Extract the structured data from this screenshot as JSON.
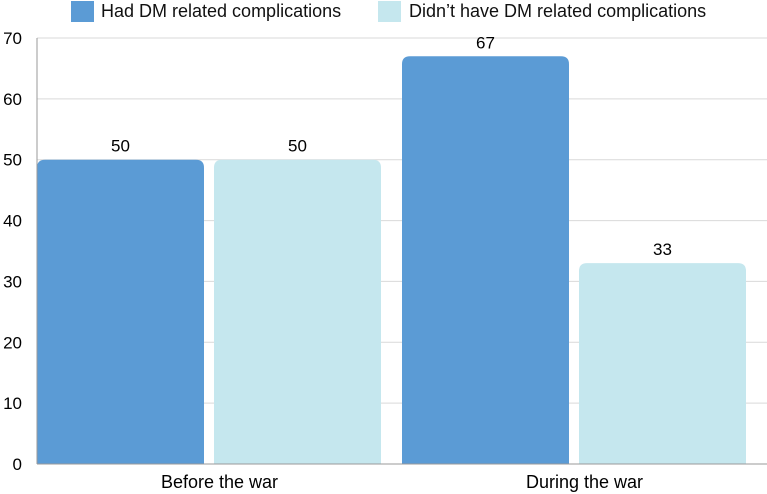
{
  "chart_data": {
    "type": "bar",
    "title": "",
    "xlabel": "",
    "ylabel": "",
    "categories": [
      "Before the war",
      "During the war"
    ],
    "series": [
      {
        "name": "Had DM related complications",
        "values": [
          50,
          67
        ],
        "color": "#5b9bd5"
      },
      {
        "name": "Didn’t have DM related complications",
        "values": [
          50,
          33
        ],
        "color": "#c5e7ee"
      }
    ],
    "ylim": [
      0,
      70
    ],
    "yticks": [
      0,
      10,
      20,
      30,
      40,
      50,
      60,
      70
    ],
    "grid": true,
    "legend_position": "top"
  }
}
